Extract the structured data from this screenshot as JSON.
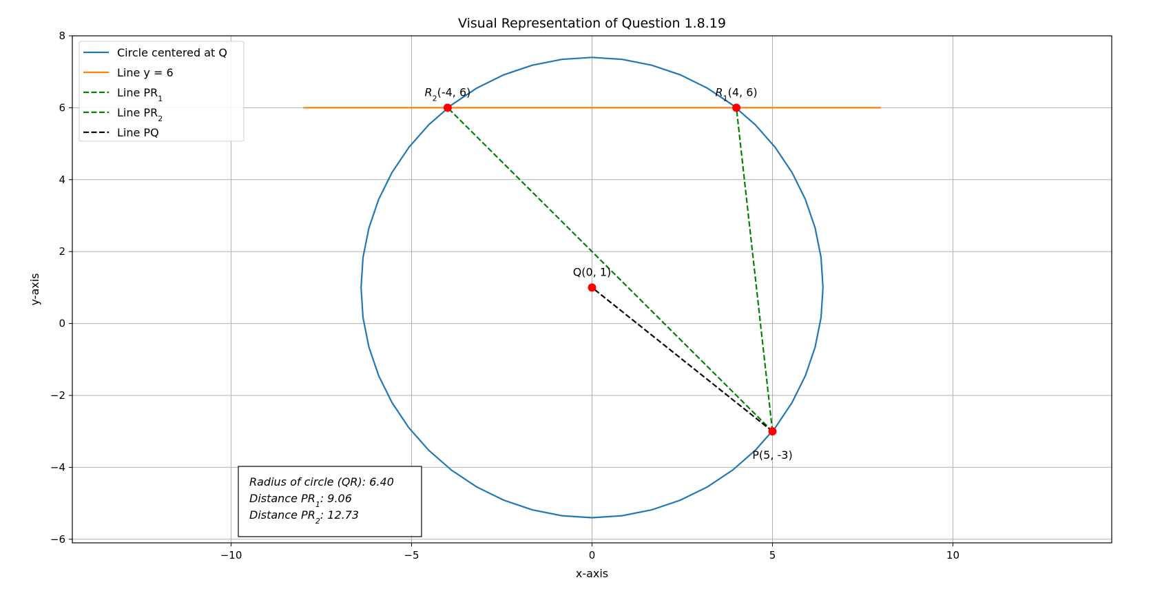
{
  "chart_data": {
    "type": "line",
    "title": "Visual Representation of Question 1.8.19",
    "xlabel": "x-axis",
    "ylabel": "y-axis",
    "xlim": [
      -14.4,
      14.4
    ],
    "ylim": [
      -6.1,
      8.0
    ],
    "grid": true,
    "legend_position": "upper-left",
    "x_ticks": [
      -10,
      -5,
      0,
      5,
      10
    ],
    "x_tick_labels": [
      "−10",
      "−5",
      "0",
      "5",
      "10"
    ],
    "y_ticks": [
      -6,
      -4,
      -2,
      0,
      2,
      4,
      6,
      8
    ],
    "y_tick_labels": [
      "−6",
      "−4",
      "−2",
      "0",
      "2",
      "4",
      "6",
      "8"
    ],
    "colors": {
      "circle": "#1f77b4",
      "line_y6": "#ff7f0e",
      "line_pr": "#008000",
      "line_pq": "#000000",
      "points": "#ff0000"
    },
    "series": [
      {
        "name": "Circle centered at Q",
        "kind": "circle",
        "center": [
          0,
          1
        ],
        "radius": 6.4,
        "style": "solid",
        "color": "#1f77b4"
      },
      {
        "name": "Line y = 6",
        "kind": "segment",
        "from": [
          -8,
          6
        ],
        "to": [
          8,
          6
        ],
        "style": "solid",
        "color": "#ff7f0e"
      },
      {
        "name": "Line PR",
        "name_sub": "1",
        "kind": "segment",
        "from": [
          5,
          -3
        ],
        "to": [
          4,
          6
        ],
        "style": "dashed",
        "color": "#008000"
      },
      {
        "name": "Line PR",
        "name_sub": "2",
        "kind": "segment",
        "from": [
          5,
          -3
        ],
        "to": [
          -4,
          6
        ],
        "style": "dashed",
        "color": "#008000"
      },
      {
        "name": "Line PQ",
        "kind": "segment",
        "from": [
          5,
          -3
        ],
        "to": [
          0,
          1
        ],
        "style": "dashed",
        "color": "#000000"
      }
    ],
    "points": [
      {
        "x": 0,
        "y": 1,
        "prefix": "Q",
        "sub": "",
        "suffix": "(0, 1)",
        "italic": false,
        "anchor": "above"
      },
      {
        "x": 5,
        "y": -3,
        "prefix": "P",
        "sub": "",
        "suffix": "(5, -3)",
        "italic": false,
        "anchor": "below"
      },
      {
        "x": 4,
        "y": 6,
        "prefix": "R",
        "sub": "1",
        "suffix": "(4, 6)",
        "italic": true,
        "anchor": "above"
      },
      {
        "x": -4,
        "y": 6,
        "prefix": "R",
        "sub": "2",
        "suffix": "(-4, 6)",
        "italic": true,
        "anchor": "above"
      }
    ],
    "annotation_box": [
      {
        "pre": "Radius of circle (QR): 6.40",
        "sub": "",
        "post": ""
      },
      {
        "pre": "Distance PR",
        "sub": "1",
        "post": ": 9.06"
      },
      {
        "pre": "Distance PR",
        "sub": "2",
        "post": ": 12.73"
      }
    ]
  }
}
